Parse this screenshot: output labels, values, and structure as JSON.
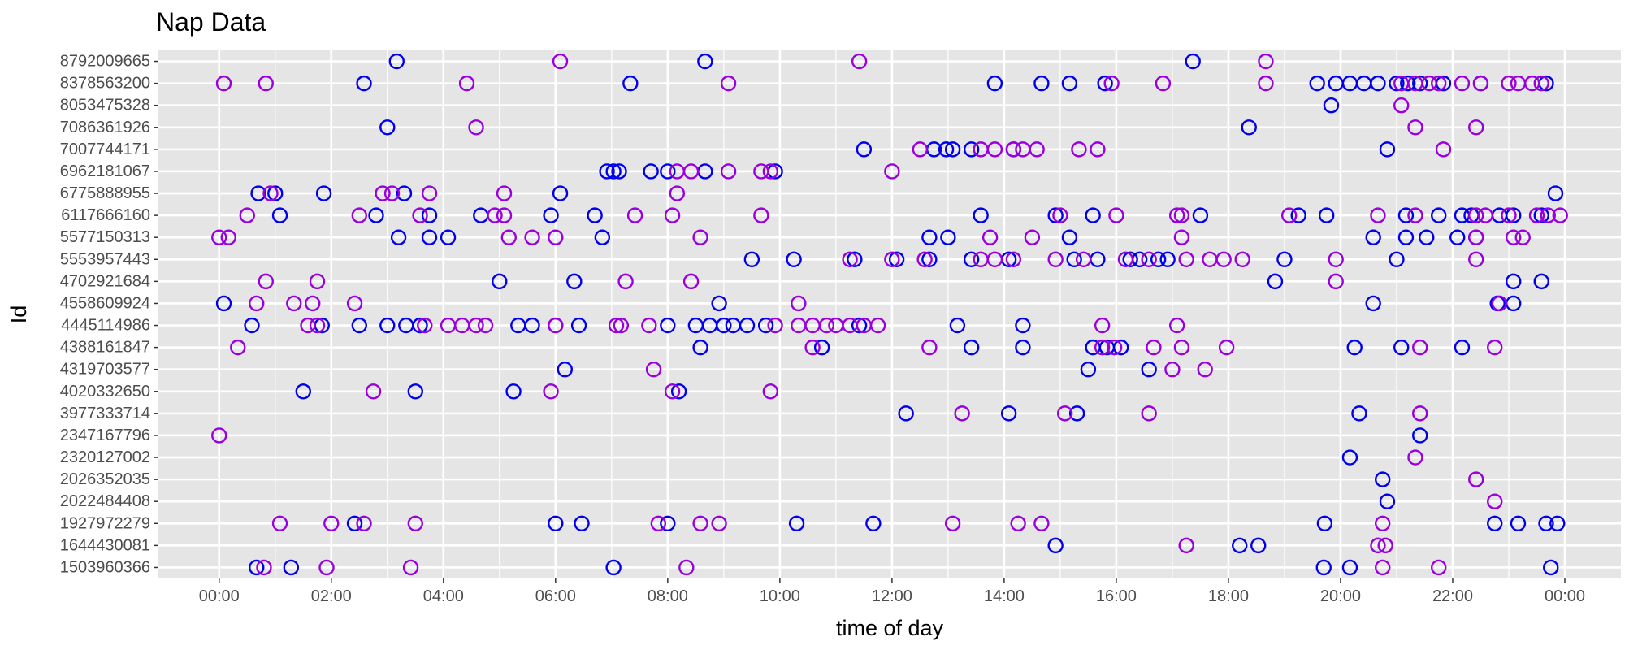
{
  "chart_data": {
    "type": "scatter",
    "title": "Nap Data",
    "xlabel": "time of day",
    "ylabel": "Id",
    "xlim": [
      "-01:05",
      "25:00"
    ],
    "x_ticks": [
      "00:00",
      "02:00",
      "04:00",
      "06:00",
      "08:00",
      "10:00",
      "12:00",
      "14:00",
      "16:00",
      "18:00",
      "20:00",
      "22:00",
      "00:00"
    ],
    "x_tick_values_hours": [
      0,
      2,
      4,
      6,
      8,
      10,
      12,
      14,
      16,
      18,
      20,
      22,
      24
    ],
    "grid": true,
    "legend": "none",
    "colors": {
      "blue": "#0000ee",
      "purple": "#9900dd",
      "panel": "#e5e5e5",
      "grid": "#ffffff"
    },
    "categories": [
      "1503960366",
      "1644430081",
      "1927972279",
      "2022484408",
      "2026352035",
      "2320127002",
      "2347167796",
      "3977333714",
      "4020332650",
      "4319703577",
      "4388161847",
      "4445114986",
      "4558609924",
      "4702921684",
      "5553957443",
      "5577150313",
      "6117666160",
      "6775888955",
      "6962181067",
      "7007744171",
      "7086361926",
      "8053475328",
      "8378563200",
      "8792009665"
    ],
    "series": [
      {
        "color_key": "blue",
        "points": [
          {
            "id": "1503960366",
            "times": [
              "00:40",
              "01:17",
              "07:02",
              "19:42",
              "20:10",
              "23:45"
            ]
          },
          {
            "id": "1644430081",
            "times": [
              "14:55",
              "18:12",
              "18:32"
            ]
          },
          {
            "id": "1927972279",
            "times": [
              "02:25",
              "06:00",
              "06:28",
              "08:00",
              "10:18",
              "11:40",
              "19:43",
              "22:45",
              "23:10",
              "23:40",
              "23:52"
            ]
          },
          {
            "id": "2022484408",
            "times": [
              "20:50"
            ]
          },
          {
            "id": "2026352035",
            "times": [
              "20:45"
            ]
          },
          {
            "id": "2320127002",
            "times": [
              "20:10"
            ]
          },
          {
            "id": "2347167796",
            "times": [
              "21:25"
            ]
          },
          {
            "id": "3977333714",
            "times": [
              "12:15",
              "14:05",
              "15:18",
              "20:20"
            ]
          },
          {
            "id": "4020332650",
            "times": [
              "01:30",
              "03:30",
              "05:15",
              "08:12"
            ]
          },
          {
            "id": "4319703577",
            "times": [
              "06:10",
              "15:30",
              "16:35"
            ]
          },
          {
            "id": "4388161847",
            "times": [
              "08:35",
              "10:45",
              "13:25",
              "14:20",
              "15:35",
              "15:50",
              "16:05",
              "20:15",
              "21:05",
              "22:10"
            ]
          },
          {
            "id": "4445114986",
            "times": [
              "00:35",
              "01:50",
              "02:30",
              "03:00",
              "03:20",
              "03:35",
              "05:20",
              "05:35",
              "06:00",
              "06:25",
              "08:00",
              "08:30",
              "08:45",
              "09:00",
              "09:10",
              "09:25",
              "09:45",
              "11:25",
              "13:10",
              "14:20"
            ]
          },
          {
            "id": "4558609924",
            "times": [
              "00:05",
              "08:55",
              "20:35",
              "22:48",
              "23:05"
            ]
          },
          {
            "id": "4702921684",
            "times": [
              "05:00",
              "06:20",
              "18:50",
              "23:05",
              "23:35"
            ]
          },
          {
            "id": "5553957443",
            "times": [
              "09:30",
              "10:15",
              "11:20",
              "12:05",
              "12:40",
              "13:25",
              "14:05",
              "15:15",
              "15:40",
              "16:15",
              "16:25",
              "16:45",
              "16:55",
              "19:00",
              "21:00"
            ]
          },
          {
            "id": "5577150313",
            "times": [
              "03:12",
              "03:45",
              "04:05",
              "06:50",
              "12:40",
              "13:00",
              "15:10",
              "20:35",
              "21:10",
              "21:32",
              "22:05",
              "22:25"
            ]
          },
          {
            "id": "6117666160",
            "times": [
              "01:05",
              "02:48",
              "03:45",
              "04:40",
              "05:55",
              "06:42",
              "13:35",
              "14:55",
              "15:35",
              "17:30",
              "19:15",
              "19:45",
              "21:10",
              "21:45",
              "22:10",
              "22:20",
              "22:50",
              "23:05",
              "23:35"
            ]
          },
          {
            "id": "6775888955",
            "times": [
              "00:42",
              "01:00",
              "01:52",
              "03:18",
              "06:05",
              "23:50"
            ]
          },
          {
            "id": "6962181067",
            "times": [
              "06:55",
              "07:02",
              "07:08",
              "07:42",
              "08:00",
              "08:40",
              "09:55"
            ]
          },
          {
            "id": "7007744171",
            "times": [
              "11:30",
              "12:45",
              "12:58",
              "13:05",
              "13:25",
              "14:10",
              "20:50"
            ]
          },
          {
            "id": "7086361926",
            "times": [
              "03:00",
              "18:22"
            ]
          },
          {
            "id": "8053475328",
            "times": [
              "19:50"
            ]
          },
          {
            "id": "8378563200",
            "times": [
              "02:35",
              "07:20",
              "13:50",
              "14:40",
              "15:10",
              "15:48",
              "19:35",
              "19:55",
              "20:10",
              "20:25",
              "20:40",
              "21:00",
              "21:12",
              "21:25",
              "21:50",
              "22:30",
              "23:40"
            ]
          },
          {
            "id": "8792009665",
            "times": [
              "03:10",
              "08:40",
              "17:22"
            ]
          }
        ]
      },
      {
        "color_key": "purple",
        "points": [
          {
            "id": "1503960366",
            "times": [
              "00:48",
              "01:55",
              "03:25",
              "08:20",
              "20:45",
              "21:45"
            ]
          },
          {
            "id": "1644430081",
            "times": [
              "17:15",
              "20:40",
              "20:48"
            ]
          },
          {
            "id": "1927972279",
            "times": [
              "01:05",
              "02:00",
              "02:35",
              "03:30",
              "07:50",
              "08:35",
              "08:55",
              "13:05",
              "14:15",
              "14:40",
              "20:45"
            ]
          },
          {
            "id": "2022484408",
            "times": [
              "22:45"
            ]
          },
          {
            "id": "2026352035",
            "times": [
              "22:25"
            ]
          },
          {
            "id": "2320127002",
            "times": [
              "21:20"
            ]
          },
          {
            "id": "2347167796",
            "times": [
              "00:00"
            ]
          },
          {
            "id": "3977333714",
            "times": [
              "13:15",
              "15:05",
              "16:35",
              "21:25"
            ]
          },
          {
            "id": "4020332650",
            "times": [
              "02:45",
              "05:55",
              "08:05",
              "09:50"
            ]
          },
          {
            "id": "4319703577",
            "times": [
              "07:45",
              "17:00",
              "17:35"
            ]
          },
          {
            "id": "4388161847",
            "times": [
              "00:20",
              "10:35",
              "12:40",
              "15:45",
              "15:58",
              "16:40",
              "17:10",
              "17:58",
              "21:25",
              "22:45"
            ]
          },
          {
            "id": "4445114986",
            "times": [
              "01:35",
              "01:45",
              "03:40",
              "04:05",
              "04:20",
              "04:35",
              "04:45",
              "06:00",
              "07:05",
              "07:10",
              "07:40",
              "09:55",
              "10:20",
              "10:35",
              "10:50",
              "11:00",
              "11:15",
              "11:30",
              "11:45",
              "15:45",
              "17:05"
            ]
          },
          {
            "id": "4558609924",
            "times": [
              "00:40",
              "01:20",
              "01:40",
              "02:25",
              "10:20",
              "22:50"
            ]
          },
          {
            "id": "4702921684",
            "times": [
              "00:50",
              "01:45",
              "07:15",
              "08:25",
              "19:55"
            ]
          },
          {
            "id": "5553957443",
            "times": [
              "11:15",
              "12:00",
              "12:35",
              "13:35",
              "13:50",
              "14:10",
              "14:55",
              "15:25",
              "16:10",
              "16:35",
              "17:15",
              "17:40",
              "17:55",
              "18:15",
              "19:55",
              "22:25"
            ]
          },
          {
            "id": "5577150313",
            "times": [
              "00:00",
              "00:10",
              "05:10",
              "05:35",
              "06:00",
              "08:35",
              "13:45",
              "14:30",
              "17:10",
              "22:25",
              "23:05",
              "23:15"
            ]
          },
          {
            "id": "6117666160",
            "times": [
              "00:30",
              "02:30",
              "03:35",
              "04:55",
              "05:05",
              "07:25",
              "08:05",
              "09:40",
              "15:00",
              "16:00",
              "17:05",
              "17:10",
              "19:05",
              "20:40",
              "21:20",
              "22:25",
              "22:35",
              "23:00",
              "23:30",
              "23:42",
              "23:55"
            ]
          },
          {
            "id": "6775888955",
            "times": [
              "00:55",
              "02:55",
              "03:05",
              "03:45",
              "05:05",
              "08:10"
            ]
          },
          {
            "id": "6962181067",
            "times": [
              "08:10",
              "08:25",
              "09:05",
              "09:40",
              "09:50",
              "12:00"
            ]
          },
          {
            "id": "7007744171",
            "times": [
              "12:30",
              "13:35",
              "13:50",
              "14:10",
              "14:20",
              "14:35",
              "15:20",
              "15:40",
              "21:50"
            ]
          },
          {
            "id": "7086361926",
            "times": [
              "04:35",
              "21:20",
              "22:25"
            ]
          },
          {
            "id": "8053475328",
            "times": [
              "21:05"
            ]
          },
          {
            "id": "8378563200",
            "times": [
              "00:05",
              "00:50",
              "04:25",
              "09:05",
              "15:55",
              "16:50",
              "18:40",
              "21:05",
              "21:20",
              "21:35",
              "21:45",
              "22:10",
              "22:30",
              "23:00",
              "23:10",
              "23:25",
              "23:35"
            ]
          },
          {
            "id": "8792009665",
            "times": [
              "06:05",
              "11:25",
              "18:40"
            ]
          }
        ]
      }
    ]
  }
}
